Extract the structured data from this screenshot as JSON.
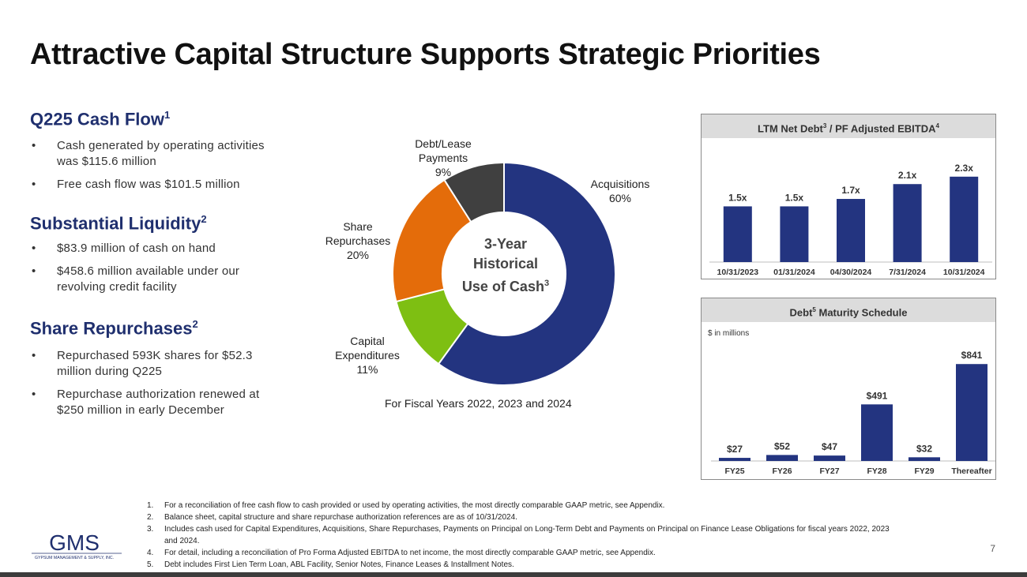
{
  "title": "Attractive Capital Structure Supports Strategic Priorities",
  "left": {
    "cash_flow": {
      "heading": "Q225 Cash Flow",
      "sup": "1",
      "bullets": [
        "Cash generated by operating activities was $115.6 million",
        "Free cash flow was $101.5 million"
      ]
    },
    "liquidity": {
      "heading": "Substantial Liquidity",
      "sup": "2",
      "bullets": [
        "$83.9 million of cash on hand",
        "$458.6 million available under our revolving credit facility"
      ]
    },
    "repurchases": {
      "heading": "Share Repurchases",
      "sup": "2",
      "bullets": [
        "Repurchased 593K shares for $52.3 million during Q225",
        "Repurchase authorization renewed at $250 million in early December"
      ]
    }
  },
  "donut": {
    "center_line1": "3-Year",
    "center_line2": "Historical",
    "center_line3": "Use of Cash",
    "center_sup": "3",
    "caption": "For Fiscal Years 2022, 2023 and 2024"
  },
  "net_debt_panel": {
    "title": "LTM Net Debt",
    "title_sup1": "3",
    "title_mid": " / PF Adjusted EBITDA",
    "title_sup2": "4"
  },
  "maturity_panel": {
    "title": "Debt",
    "title_sup": "5",
    "title_rest": " Maturity Schedule",
    "units_note": "$ in millions"
  },
  "chart_data": [
    {
      "type": "pie",
      "title": "3-Year Historical Use of Cash",
      "categories": [
        "Acquisitions",
        "Capital Expenditures",
        "Share Repurchases",
        "Debt/Lease Payments"
      ],
      "label_lines": [
        [
          "Acquisitions"
        ],
        [
          "Capital",
          "Expenditures"
        ],
        [
          "Share",
          "Repurchases"
        ],
        [
          "Debt/Lease",
          "Payments"
        ]
      ],
      "values": [
        60,
        11,
        20,
        9
      ],
      "value_labels": [
        "60%",
        "11%",
        "20%",
        "9%"
      ],
      "colors": [
        "#233480",
        "#7ebf12",
        "#e46c0a",
        "#404040"
      ]
    },
    {
      "type": "bar",
      "title": "LTM Net Debt / PF Adjusted EBITDA",
      "categories": [
        "10/31/2023",
        "01/31/2024",
        "04/30/2024",
        "7/31/2024",
        "10/31/2024"
      ],
      "values": [
        1.5,
        1.5,
        1.7,
        2.1,
        2.3
      ],
      "value_labels": [
        "1.5x",
        "1.5x",
        "1.7x",
        "2.1x",
        "2.3x"
      ],
      "ylim": [
        0,
        2.7
      ],
      "color": "#233480"
    },
    {
      "type": "bar",
      "title": "Debt Maturity Schedule",
      "ylabel": "$ in millions",
      "categories": [
        "FY25",
        "FY26",
        "FY27",
        "FY28",
        "FY29",
        "Thereafter"
      ],
      "values": [
        27,
        52,
        47,
        491,
        32,
        841
      ],
      "value_labels": [
        "$27",
        "$52",
        "$47",
        "$491",
        "$32",
        "$841"
      ],
      "ylim": [
        0,
        1000
      ],
      "color": "#233480"
    }
  ],
  "footnotes": [
    {
      "num": "1.",
      "text": "For a reconciliation of free cash flow to cash provided or used by operating activities, the most directly comparable GAAP metric, see Appendix."
    },
    {
      "num": "2.",
      "text": "Balance sheet, capital structure and share repurchase authorization references are as of 10/31/2024."
    },
    {
      "num": "3.",
      "text": "Includes cash used for Capital Expenditures, Acquisitions, Share Repurchases, Payments on Principal on Long-Term Debt and Payments on Principal on Finance Lease Obligations for fiscal years 2022, 2023 and 2024."
    },
    {
      "num": "4.",
      "text": "For detail, including a reconciliation of Pro Forma Adjusted EBITDA to net income, the most directly comparable GAAP metric, see Appendix."
    },
    {
      "num": "5.",
      "text": "Debt includes First Lien Term Loan, ABL Facility, Senior Notes, Finance Leases & Installment Notes."
    }
  ],
  "logo": {
    "main": "GMS",
    "sub": "GYPSUM MANAGEMENT & SUPPLY, INC."
  },
  "page_number": "7"
}
